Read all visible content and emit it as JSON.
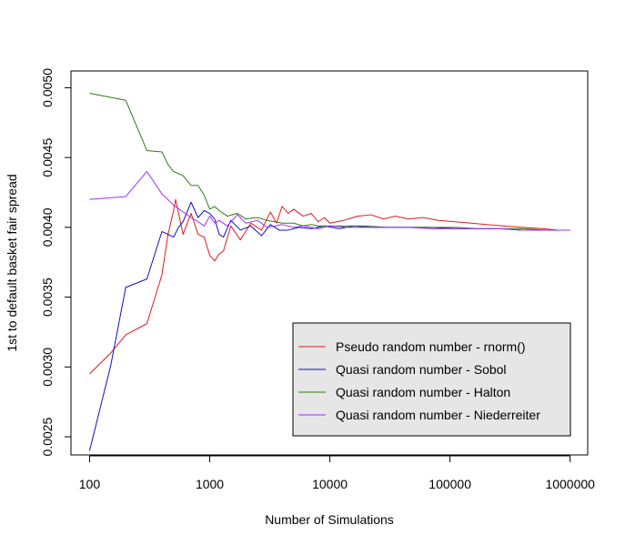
{
  "chart_data": {
    "type": "line",
    "title": "",
    "xlabel": "Number of Simulations",
    "ylabel": "1st to default basket fair spread",
    "x_scale": "log",
    "xlim": [
      70,
      1400000
    ],
    "ylim": [
      0.00237,
      0.00512
    ],
    "x_ticks": [
      100,
      1000,
      10000,
      100000,
      1000000
    ],
    "x_tick_labels": [
      "100",
      "1000",
      "10000",
      "100000",
      "1000000"
    ],
    "y_ticks": [
      0.0025,
      0.003,
      0.0035,
      0.004,
      0.0045,
      0.005
    ],
    "y_tick_labels": [
      "0.0025",
      "0.0030",
      "0.0035",
      "0.0040",
      "0.0045",
      "0.0050"
    ],
    "grid": false,
    "legend_position": "bottom-right",
    "series": [
      {
        "name": "Pseudo random number - rnorm()",
        "color": "#e31a1c",
        "points": [
          [
            100,
            0.00295
          ],
          [
            150,
            0.0031
          ],
          [
            200,
            0.00323
          ],
          [
            300,
            0.00331
          ],
          [
            400,
            0.00366
          ],
          [
            450,
            0.00395
          ],
          [
            500,
            0.00412
          ],
          [
            520,
            0.0042
          ],
          [
            600,
            0.00395
          ],
          [
            700,
            0.0041
          ],
          [
            800,
            0.00395
          ],
          [
            900,
            0.00393
          ],
          [
            1000,
            0.0038
          ],
          [
            1100,
            0.00376
          ],
          [
            1200,
            0.00381
          ],
          [
            1300,
            0.00383
          ],
          [
            1500,
            0.00401
          ],
          [
            1800,
            0.00391
          ],
          [
            2200,
            0.00403
          ],
          [
            2700,
            0.00398
          ],
          [
            3200,
            0.00411
          ],
          [
            3600,
            0.00403
          ],
          [
            4000,
            0.00415
          ],
          [
            4500,
            0.0041
          ],
          [
            5000,
            0.00413
          ],
          [
            6000,
            0.00408
          ],
          [
            7000,
            0.0041
          ],
          [
            8000,
            0.00404
          ],
          [
            9000,
            0.00407
          ],
          [
            10000,
            0.00403
          ],
          [
            13000,
            0.00405
          ],
          [
            17000,
            0.00408
          ],
          [
            22000,
            0.00409
          ],
          [
            28000,
            0.00406
          ],
          [
            35000,
            0.00408
          ],
          [
            45000,
            0.00406
          ],
          [
            60000,
            0.00407
          ],
          [
            80000,
            0.00405
          ],
          [
            110000,
            0.00404
          ],
          [
            150000,
            0.00403
          ],
          [
            200000,
            0.00402
          ],
          [
            280000,
            0.00401
          ],
          [
            400000,
            0.004
          ],
          [
            600000,
            0.00399
          ],
          [
            800000,
            0.00398
          ],
          [
            1000000,
            0.00398
          ]
        ]
      },
      {
        "name": "Quasi random number - Sobol",
        "color": "#1010c8",
        "points": [
          [
            100,
            0.0024
          ],
          [
            150,
            0.00301
          ],
          [
            200,
            0.00357
          ],
          [
            300,
            0.00363
          ],
          [
            400,
            0.00397
          ],
          [
            500,
            0.00393
          ],
          [
            550,
            0.004
          ],
          [
            600,
            0.00404
          ],
          [
            700,
            0.00418
          ],
          [
            800,
            0.00407
          ],
          [
            900,
            0.00412
          ],
          [
            1000,
            0.0041
          ],
          [
            1100,
            0.00406
          ],
          [
            1200,
            0.00395
          ],
          [
            1300,
            0.00393
          ],
          [
            1500,
            0.00405
          ],
          [
            1800,
            0.00398
          ],
          [
            2200,
            0.00401
          ],
          [
            2700,
            0.00394
          ],
          [
            3200,
            0.00402
          ],
          [
            3800,
            0.00398
          ],
          [
            4500,
            0.00398
          ],
          [
            5500,
            0.004
          ],
          [
            7000,
            0.00399
          ],
          [
            9000,
            0.00401
          ],
          [
            12000,
            0.00399
          ],
          [
            16000,
            0.00401
          ],
          [
            22000,
            0.004
          ],
          [
            30000,
            0.004
          ],
          [
            45000,
            0.004
          ],
          [
            70000,
            0.004
          ],
          [
            110000,
            0.00399
          ],
          [
            170000,
            0.00399
          ],
          [
            260000,
            0.00399
          ],
          [
            400000,
            0.00398
          ],
          [
            650000,
            0.00398
          ],
          [
            1000000,
            0.00398
          ]
        ]
      },
      {
        "name": "Quasi random number - Halton",
        "color": "#2e7d12",
        "points": [
          [
            100,
            0.00496
          ],
          [
            200,
            0.00491
          ],
          [
            300,
            0.00455
          ],
          [
            400,
            0.00454
          ],
          [
            450,
            0.00445
          ],
          [
            500,
            0.0044
          ],
          [
            600,
            0.00437
          ],
          [
            700,
            0.0043
          ],
          [
            800,
            0.0043
          ],
          [
            900,
            0.00423
          ],
          [
            1000,
            0.00413
          ],
          [
            1100,
            0.00415
          ],
          [
            1200,
            0.00412
          ],
          [
            1400,
            0.00408
          ],
          [
            1700,
            0.0041
          ],
          [
            2000,
            0.00406
          ],
          [
            2500,
            0.00407
          ],
          [
            3000,
            0.00405
          ],
          [
            3500,
            0.00404
          ],
          [
            4000,
            0.00403
          ],
          [
            5000,
            0.00403
          ],
          [
            6000,
            0.00401
          ],
          [
            7000,
            0.00402
          ],
          [
            8000,
            0.00401
          ],
          [
            10000,
            0.00401
          ],
          [
            14000,
            0.00401
          ],
          [
            20000,
            0.00401
          ],
          [
            30000,
            0.004
          ],
          [
            45000,
            0.004
          ],
          [
            70000,
            0.004
          ],
          [
            110000,
            0.004
          ],
          [
            170000,
            0.00399
          ],
          [
            270000,
            0.00399
          ],
          [
            400000,
            0.00399
          ],
          [
            650000,
            0.00398
          ],
          [
            1000000,
            0.00398
          ]
        ]
      },
      {
        "name": "Quasi random number - Niederreiter",
        "color": "#9b30ff",
        "points": [
          [
            100,
            0.0042
          ],
          [
            200,
            0.00422
          ],
          [
            300,
            0.0044
          ],
          [
            400,
            0.00424
          ],
          [
            500,
            0.00416
          ],
          [
            600,
            0.00411
          ],
          [
            700,
            0.00407
          ],
          [
            800,
            0.00404
          ],
          [
            900,
            0.00401
          ],
          [
            1000,
            0.00408
          ],
          [
            1100,
            0.00403
          ],
          [
            1200,
            0.00405
          ],
          [
            1400,
            0.00401
          ],
          [
            1700,
            0.00409
          ],
          [
            2000,
            0.00403
          ],
          [
            2500,
            0.00405
          ],
          [
            3000,
            0.004
          ],
          [
            3500,
            0.00401
          ],
          [
            4000,
            0.00402
          ],
          [
            5000,
            0.004
          ],
          [
            6000,
            0.00401
          ],
          [
            8000,
            0.00399
          ],
          [
            10000,
            0.00401
          ],
          [
            14000,
            0.004
          ],
          [
            20000,
            0.004
          ],
          [
            30000,
            0.004
          ],
          [
            45000,
            0.004
          ],
          [
            70000,
            0.00399
          ],
          [
            110000,
            0.00399
          ],
          [
            170000,
            0.00399
          ],
          [
            270000,
            0.00399
          ],
          [
            400000,
            0.00398
          ],
          [
            650000,
            0.00398
          ],
          [
            1000000,
            0.00398
          ]
        ]
      }
    ]
  }
}
